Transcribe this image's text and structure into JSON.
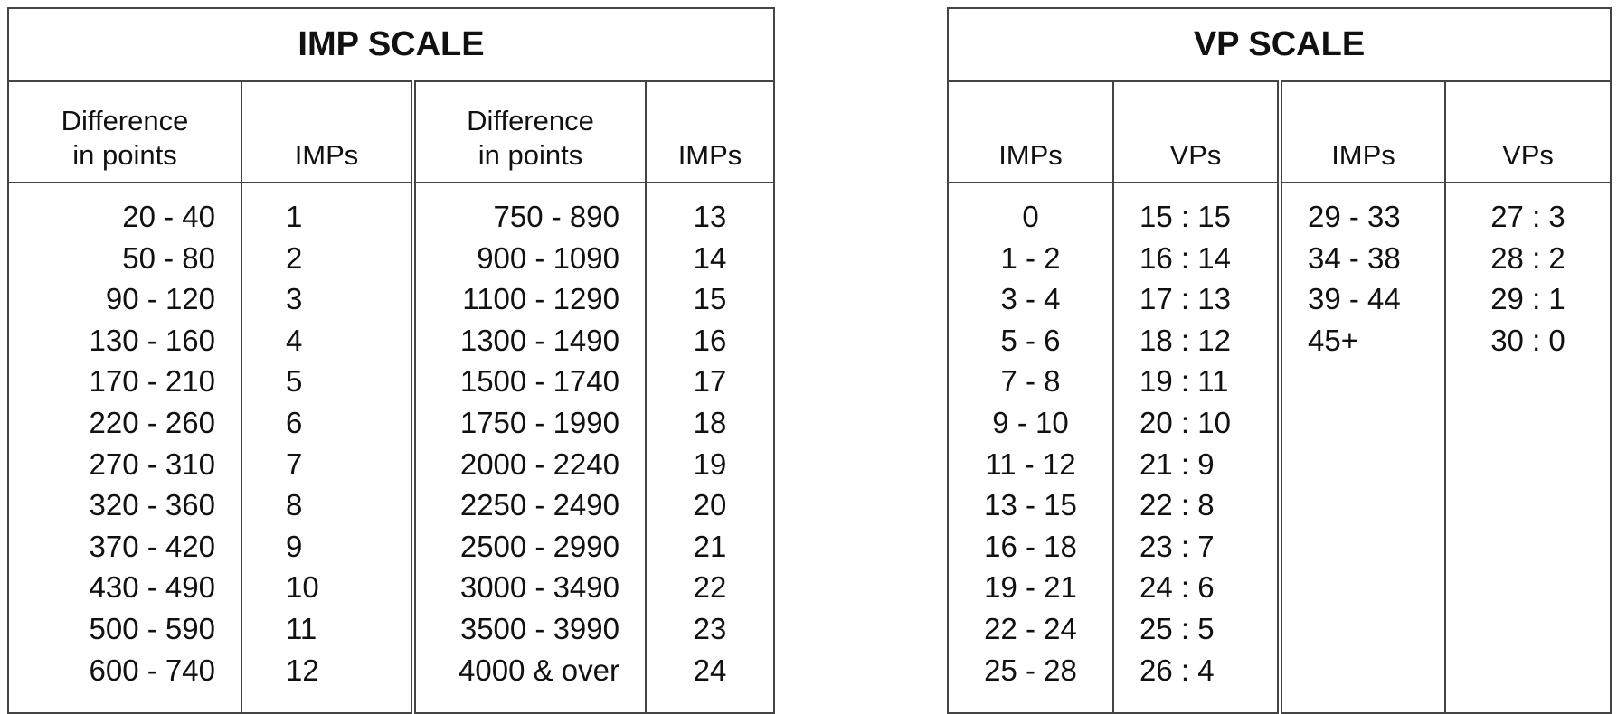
{
  "imp_scale": {
    "title": "IMP SCALE",
    "headers": [
      "Difference\nin points",
      "IMPs",
      "Difference\nin points",
      "IMPs"
    ],
    "left": {
      "points": [
        "20 - 40",
        "50 - 80",
        "90 - 120",
        "130 - 160",
        "170 - 210",
        "220 - 260",
        "270 - 310",
        "320 - 360",
        "370 - 420",
        "430 - 490",
        "500 - 590",
        "600 - 740"
      ],
      "imps": [
        "1",
        "2",
        "3",
        "4",
        "5",
        "6",
        "7",
        "8",
        "9",
        "10",
        "11",
        "12"
      ]
    },
    "right": {
      "points": [
        "750 - 890",
        "900 - 1090",
        "1100 - 1290",
        "1300 - 1490",
        "1500 - 1740",
        "1750 - 1990",
        "2000 - 2240",
        "2250 - 2490",
        "2500 - 2990",
        "3000 - 3490",
        "3500 - 3990",
        "4000 & over"
      ],
      "imps": [
        "13",
        "14",
        "15",
        "16",
        "17",
        "18",
        "19",
        "20",
        "21",
        "22",
        "23",
        "24"
      ]
    }
  },
  "vp_scale": {
    "title": "VP SCALE",
    "headers": [
      "IMPs",
      "VPs",
      "IMPs",
      "VPs"
    ],
    "left": {
      "imps": [
        "0",
        "1 - 2",
        "3 - 4",
        "5 - 6",
        "7 - 8",
        "9 - 10",
        "11 - 12",
        "13 - 15",
        "16 - 18",
        "19 - 21",
        "22 - 24",
        "25 - 28"
      ],
      "vps": [
        "15 : 15",
        "16 : 14",
        "17 : 13",
        "18 : 12",
        "19 : 11",
        "20 : 10",
        "21 : 9",
        "22 : 8",
        "23 : 7",
        "24 : 6",
        "25 : 5",
        "26 : 4"
      ]
    },
    "right": {
      "imps": [
        "29 - 33",
        "34 - 38",
        "39 - 44",
        "45+"
      ],
      "vps": [
        "27 : 3",
        "28 : 2",
        "29 : 1",
        "30 : 0"
      ]
    }
  }
}
